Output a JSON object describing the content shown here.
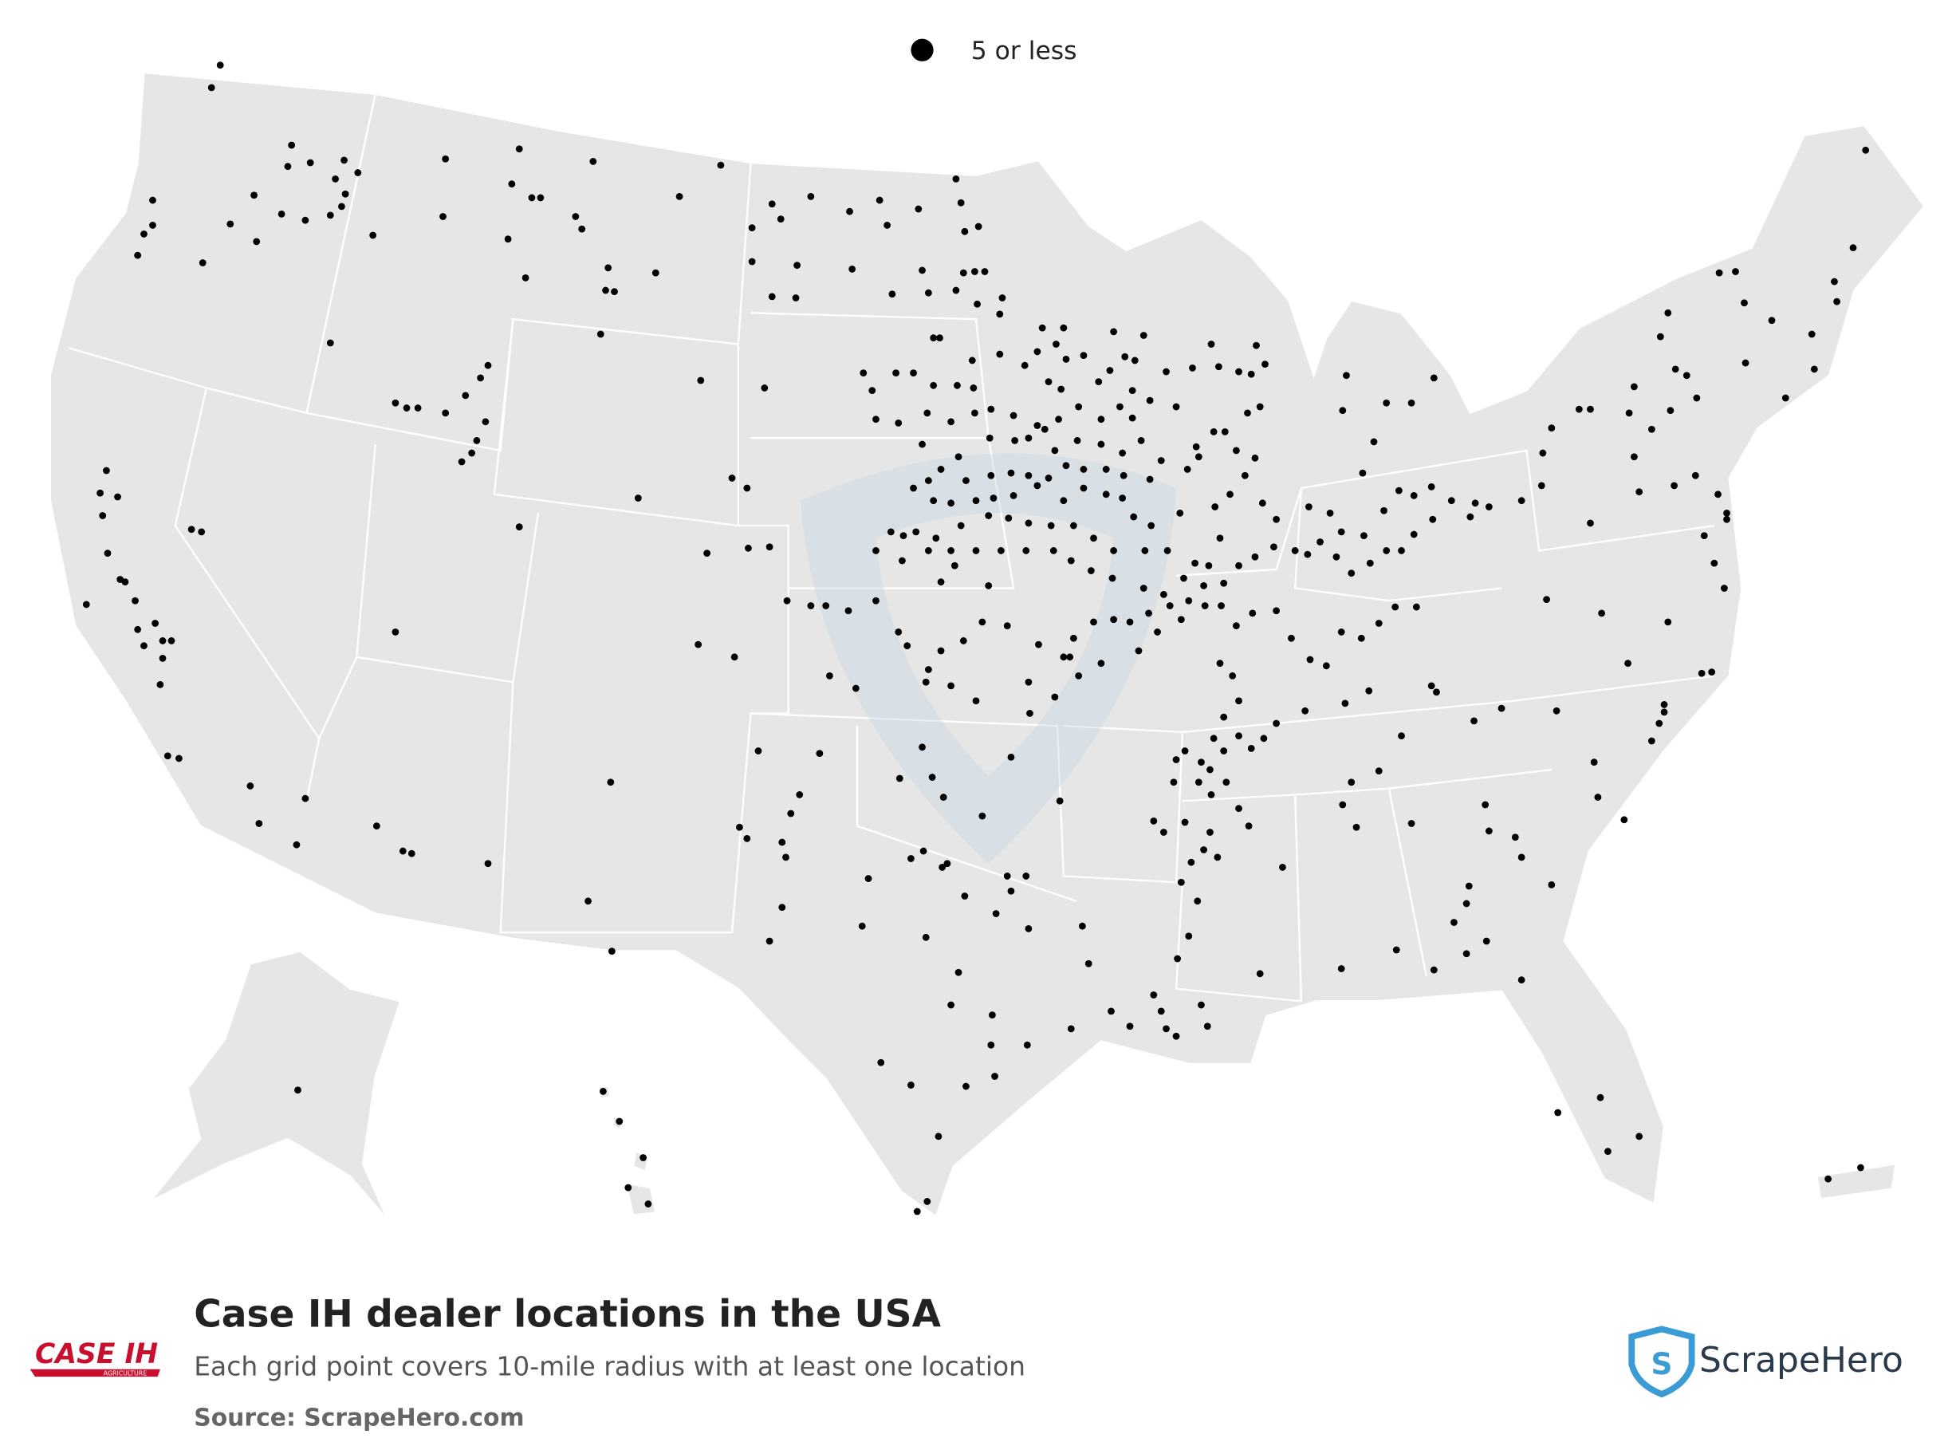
{
  "legend": {
    "label": "5 or less"
  },
  "title": "Case IH dealer locations in the USA",
  "subtitle": "Each grid point covers 10-mile radius with at least one location",
  "source": "Source: ScrapeHero.com",
  "brand_logo": {
    "name": "CASE IH",
    "tagline": "AGRICULTURE"
  },
  "publisher": "ScrapeHero"
}
